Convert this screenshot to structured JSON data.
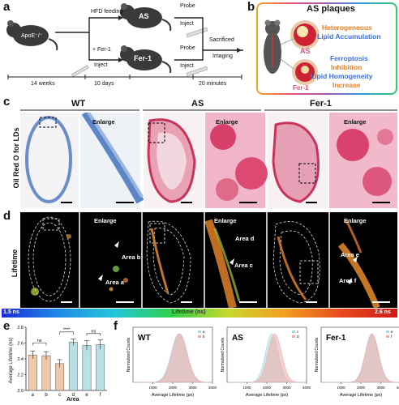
{
  "panel_a": {
    "label": "a",
    "mouse_apoe": "ApoE⁻/⁻",
    "mouse_as": "AS",
    "mouse_fer": "Fer-1",
    "hfd": "HFD feeding",
    "fer_inject_1": "+ Fer-1",
    "fer_inject_2": "Inject",
    "probe_inject_1": "Probe",
    "probe_inject_2": "Inject",
    "probe2_inject_1": "Probe",
    "probe2_inject_2": "Inject",
    "sacrificed_1": "Sacrificed",
    "sacrificed_2": "Imaging",
    "t1": "14 weeks",
    "t2": "10 days",
    "t3": "20 minutes"
  },
  "panel_b": {
    "label": "b",
    "title": "AS plaques",
    "as_label": "AS",
    "fer_label": "Fer-1",
    "het_1": "Heterogeneous",
    "het_2": "Lipid Accumulation",
    "ferroptosis": "Ferroptosis",
    "inhibition": "Inhibition",
    "homog": "Lipid Homogeneity",
    "increase": "Increase"
  },
  "panel_c": {
    "label": "c",
    "wt": "WT",
    "as": "AS",
    "fer": "Fer-1",
    "enlarge": "Enlarge",
    "side": "Oil Red O for LDs"
  },
  "panel_d": {
    "label": "d",
    "enlarge": "Enlarge",
    "side": "Lifetime",
    "area_a": "Area a",
    "area_b": "Area b",
    "area_c": "Area c",
    "area_d": "Area d",
    "area_e": "Area e",
    "area_f": "Area f",
    "cb_min": "1.5 ns",
    "cb_mid": "Lifetime (ns)",
    "cb_max": "2.6 ns"
  },
  "panel_e": {
    "label": "e",
    "chart_data": {
      "type": "bar",
      "categories": [
        "a",
        "b",
        "c",
        "d",
        "e",
        "f"
      ],
      "values": [
        2.45,
        2.44,
        2.34,
        2.61,
        2.57,
        2.58
      ],
      "errors": [
        0.05,
        0.05,
        0.05,
        0.04,
        0.06,
        0.06
      ],
      "ylim": [
        2.0,
        2.8
      ],
      "yticks": [
        "2.0",
        "2.2",
        "2.4",
        "2.6",
        "2.8"
      ],
      "ylabel": "Average Lifetime (ns)",
      "xlabel": "Area",
      "sig": [
        "ns",
        "****",
        "ns"
      ],
      "colors": [
        "#f0c9a8",
        "#f0c9a8",
        "#f0c9a8",
        "#b9e0e6",
        "#b9e0e6",
        "#b9e0e6"
      ]
    }
  },
  "panel_f": {
    "label": "f",
    "ylabel": "Normalized Counts",
    "xlabel": "Average Lifetime (ps)",
    "xticks": [
      "1000",
      "2000",
      "3000",
      "4000"
    ],
    "charts": [
      {
        "title": "WT",
        "legend": [
          "a",
          "b"
        ],
        "means": [
          2300,
          2350
        ],
        "sds": [
          380,
          380
        ],
        "colors": [
          "#a8d8dc",
          "#f2a8a8"
        ]
      },
      {
        "title": "AS",
        "legend": [
          "c",
          "d"
        ],
        "means": [
          2250,
          2400
        ],
        "sds": [
          320,
          340
        ],
        "colors": [
          "#a8d8dc",
          "#f2a8a8"
        ]
      },
      {
        "title": "Fer-1",
        "legend": [
          "e",
          "f"
        ],
        "means": [
          2550,
          2560
        ],
        "sds": [
          330,
          330
        ],
        "colors": [
          "#a8d8dc",
          "#f2a8a8"
        ]
      }
    ]
  }
}
